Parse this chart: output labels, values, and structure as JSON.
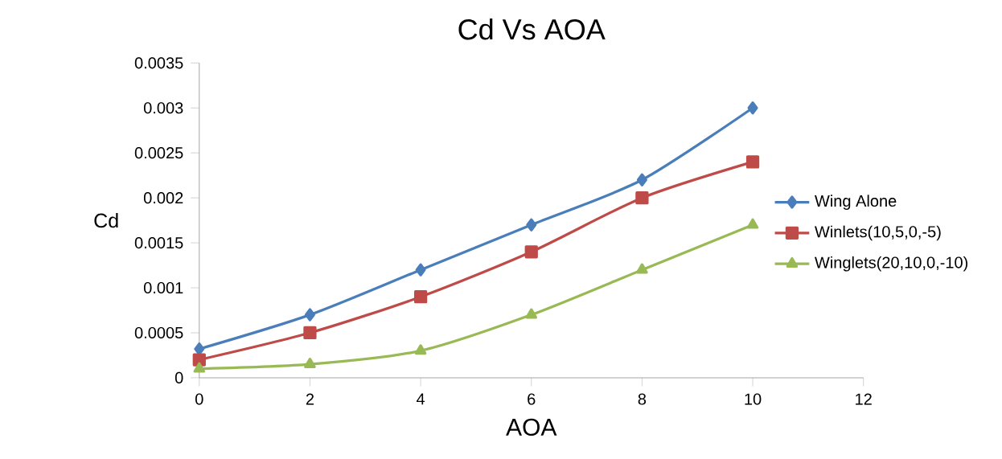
{
  "chart_data": {
    "type": "line",
    "title": "Cd Vs AOA",
    "xlabel": "AOA",
    "ylabel": "Cd",
    "x": [
      0,
      2,
      4,
      6,
      8,
      10
    ],
    "series": [
      {
        "name": "Wing Alone",
        "color": "#4a7ebb",
        "marker": "diamond",
        "values": [
          0.00032,
          0.0007,
          0.0012,
          0.0017,
          0.0022,
          0.003
        ]
      },
      {
        "name": "Winlets(10,5,0,-5)",
        "color": "#be4b48",
        "marker": "square",
        "values": [
          0.0002,
          0.0005,
          0.0009,
          0.0014,
          0.002,
          0.0024
        ]
      },
      {
        "name": "Winglets(20,10,0,-10)",
        "color": "#98b954",
        "marker": "triangle",
        "values": [
          0.0001,
          0.00015,
          0.0003,
          0.0007,
          0.0012,
          0.0017
        ]
      }
    ],
    "xlim": [
      0,
      12
    ],
    "xticks": [
      0,
      2,
      4,
      6,
      8,
      10,
      12
    ],
    "ylim": [
      0,
      0.0035
    ],
    "yticks": [
      0,
      0.0005,
      0.001,
      0.0015,
      0.002,
      0.0025,
      0.003,
      0.0035
    ],
    "grid": false,
    "legend": "right",
    "line_style": "solid"
  }
}
